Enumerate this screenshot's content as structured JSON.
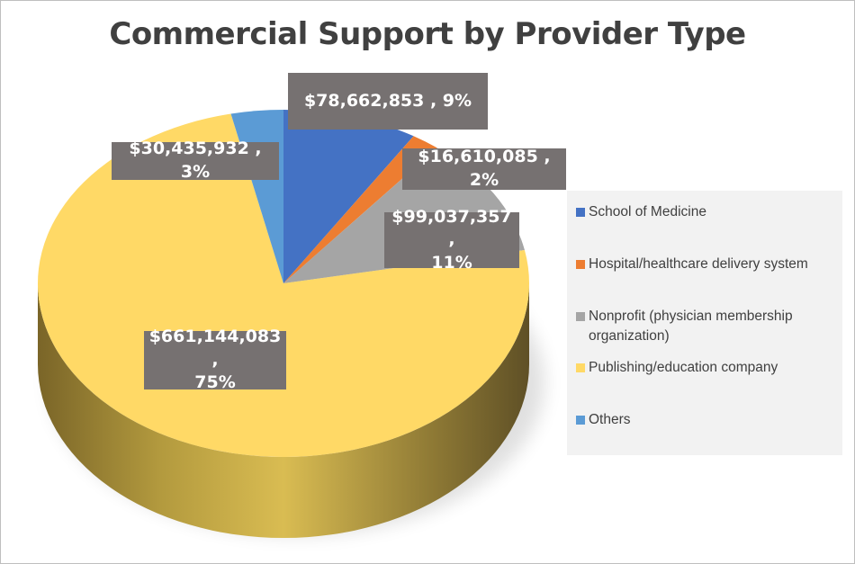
{
  "chart_data": {
    "type": "pie",
    "title": "Commercial Support by Provider Type",
    "legend_position": "right",
    "style": "3d",
    "slices": [
      {
        "name": "School of Medicine",
        "value": 78662853,
        "percent": 9,
        "label": "$78,662,853 , 9%",
        "color": "#4472c4"
      },
      {
        "name": "Hospital/healthcare delivery system",
        "value": 16610085,
        "percent": 2,
        "label": "$16,610,085 , 2%",
        "color": "#ed7d31"
      },
      {
        "name": "Nonprofit (physician membership organization)",
        "value": 99037357,
        "percent": 11,
        "label": "$99,037,357 ,\n11%",
        "color": "#a5a5a5"
      },
      {
        "name": "Publishing/education company",
        "value": 661144083,
        "percent": 75,
        "label": "$661,144,083 ,\n75%",
        "color": "#ffd966"
      },
      {
        "name": "Others",
        "value": 30435932,
        "percent": 3,
        "label": "$30,435,932 , 3%",
        "color": "#5b9bd5"
      }
    ]
  }
}
